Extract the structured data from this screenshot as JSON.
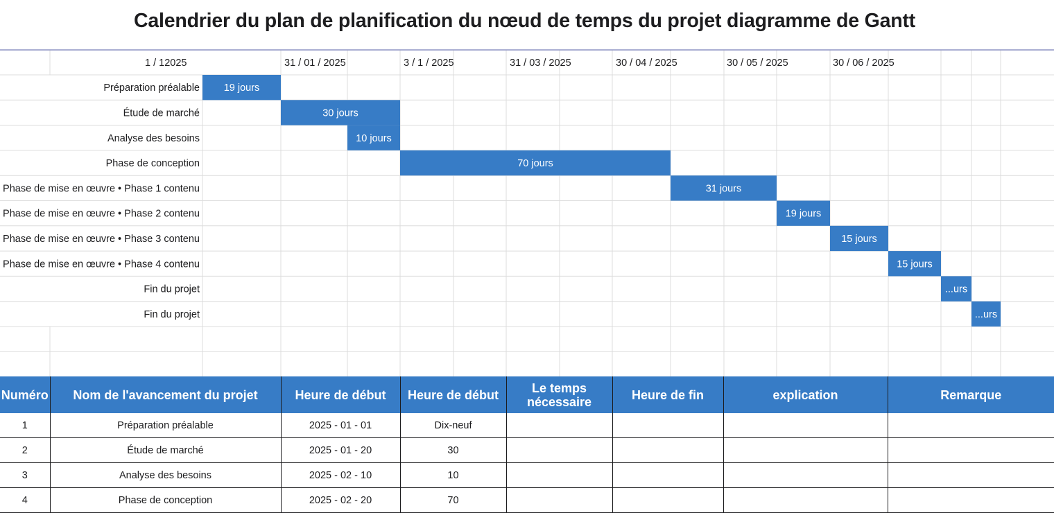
{
  "title": "Calendrier du plan de planification du nœud de temps du projet diagramme de Gantt",
  "colors": {
    "bar": "#377cc6",
    "grid": "#dcdcdc",
    "header_line": "#8e93c4",
    "text": "#1c1c1e"
  },
  "chart_data": {
    "type": "bar",
    "orientation": "horizontal-gantt",
    "date_labels": [
      "1 / 12025",
      "31 / 01 / 2025",
      "3 / 1 / 2025",
      "31 / 03 / 2025",
      "30 / 04 / 2025",
      "30 / 05 / 2025",
      "30 / 06 / 2025"
    ],
    "tasks": [
      {
        "name": "Préparation préalable",
        "duration": 19,
        "label": "19 jours"
      },
      {
        "name": "Étude de marché",
        "duration": 30,
        "label": "30 jours"
      },
      {
        "name": "Analyse des besoins",
        "duration": 10,
        "label": "10 jours"
      },
      {
        "name": "Phase de conception",
        "duration": 70,
        "label": "70 jours"
      },
      {
        "name": "Phase de mise en œuvre • Phase 1 contenu",
        "duration": 31,
        "label": "31 jours"
      },
      {
        "name": "Phase de mise en œuvre • Phase 2 contenu",
        "duration": 19,
        "label": "19 jours"
      },
      {
        "name": "Phase de mise en œuvre • Phase 3 contenu",
        "duration": 15,
        "label": "15 jours"
      },
      {
        "name": "Phase de mise en œuvre • Phase 4 contenu",
        "duration": 15,
        "label": "15 jours"
      },
      {
        "name": "Fin du projet",
        "duration": null,
        "label": "...urs"
      },
      {
        "name": "Fin du projet",
        "duration": null,
        "label": "...urs"
      }
    ]
  },
  "table": {
    "headers": [
      "Numéro",
      "Nom de l'avancement du projet",
      "Heure de début",
      "Heure de début",
      "Le temps nécessaire",
      "Heure de fin",
      "explication",
      "Remarque"
    ],
    "rows": [
      [
        "1",
        "Préparation préalable",
        "2025 - 01 - 01",
        "Dix-neuf",
        "",
        "",
        "",
        ""
      ],
      [
        "2",
        "Étude de marché",
        "2025 - 01 - 20",
        "30",
        "",
        "",
        "",
        ""
      ],
      [
        "3",
        "Analyse des besoins",
        "2025 - 02 - 10",
        "10",
        "",
        "",
        "",
        ""
      ],
      [
        "4",
        "Phase de conception",
        "2025 - 02 - 20",
        "70",
        "",
        "",
        "",
        ""
      ]
    ]
  }
}
